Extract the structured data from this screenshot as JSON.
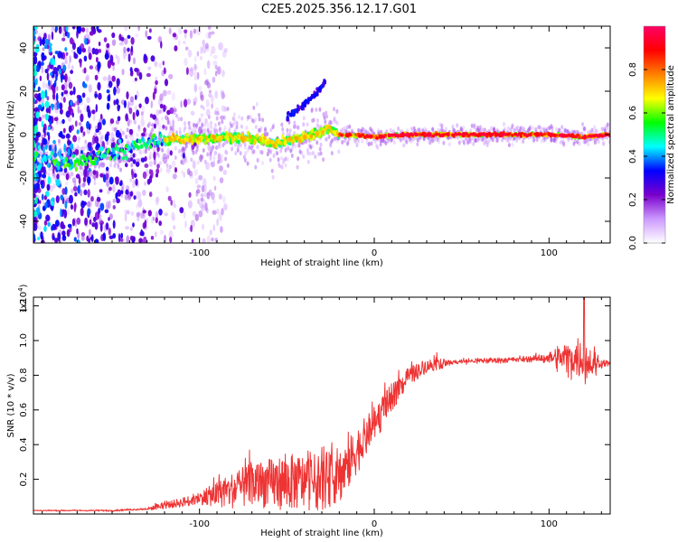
{
  "title": "C2E5.2025.356.12.17.G01",
  "chart_data": [
    {
      "type": "heatmap",
      "name": "spectrogram",
      "xlabel": "Height of straight line (km)",
      "ylabel": "Frequency (Hz)",
      "xlim": [
        -195,
        135
      ],
      "ylim": [
        -50,
        50
      ],
      "xticks": [
        -100,
        0,
        100
      ],
      "yticks": [
        -40,
        -20,
        0,
        20,
        40
      ],
      "colorbar": {
        "label": "Normalized spectral amplitude",
        "range": [
          0,
          1
        ],
        "ticks": [
          "0.0",
          "0.2",
          "0.4",
          "0.6",
          "0.8"
        ],
        "colors": [
          "#ffffff",
          "#cc99ff",
          "#7a00cc",
          "#0000ff",
          "#00ffff",
          "#00ff00",
          "#ffff00",
          "#ff8000",
          "#ff0000",
          "#ff0066"
        ]
      },
      "ridge": [
        {
          "x": -190,
          "f": -12
        },
        {
          "x": -170,
          "f": -13
        },
        {
          "x": -150,
          "f": -8
        },
        {
          "x": -130,
          "f": -4
        },
        {
          "x": -115,
          "f": -2
        },
        {
          "x": -100,
          "f": -2
        },
        {
          "x": -85,
          "f": -1
        },
        {
          "x": -70,
          "f": -2
        },
        {
          "x": -55,
          "f": -4
        },
        {
          "x": -45,
          "f": -2
        },
        {
          "x": -35,
          "f": 0
        },
        {
          "x": -25,
          "f": 3
        },
        {
          "x": -20,
          "f": 0
        },
        {
          "x": 0,
          "f": -1
        },
        {
          "x": 20,
          "f": 0
        },
        {
          "x": 60,
          "f": 0
        },
        {
          "x": 100,
          "f": 0
        },
        {
          "x": 120,
          "f": -1
        },
        {
          "x": 135,
          "f": 0
        }
      ],
      "branch": [
        {
          "x": -50,
          "f": 8
        },
        {
          "x": -40,
          "f": 14
        },
        {
          "x": -32,
          "f": 20
        },
        {
          "x": -28,
          "f": 25
        }
      ]
    },
    {
      "type": "line",
      "name": "snr",
      "xlabel": "Height of straight line (km)",
      "ylabel": "SNR (10 * v/v)",
      "scale_label": "(x10^4)",
      "scale_base": "(x10",
      "scale_exp": "4",
      "scale_close": ")",
      "xlim": [
        -195,
        135
      ],
      "ylim": [
        0,
        1.25
      ],
      "xticks": [
        -100,
        0,
        100
      ],
      "yticks": [
        0.2,
        0.4,
        0.6,
        0.8,
        1.0,
        1.2
      ],
      "ytick_labels": [
        "0.2",
        "0.4",
        "0.6",
        "0.8",
        "1.0",
        "1.2"
      ],
      "color": "#ee3333",
      "trend": [
        {
          "x": -195,
          "y": 0.02
        },
        {
          "x": -150,
          "y": 0.02
        },
        {
          "x": -130,
          "y": 0.03
        },
        {
          "x": -110,
          "y": 0.07
        },
        {
          "x": -90,
          "y": 0.12
        },
        {
          "x": -70,
          "y": 0.18
        },
        {
          "x": -50,
          "y": 0.2
        },
        {
          "x": -30,
          "y": 0.2
        },
        {
          "x": -18,
          "y": 0.25
        },
        {
          "x": -10,
          "y": 0.38
        },
        {
          "x": 0,
          "y": 0.52
        },
        {
          "x": 10,
          "y": 0.68
        },
        {
          "x": 20,
          "y": 0.8
        },
        {
          "x": 30,
          "y": 0.86
        },
        {
          "x": 50,
          "y": 0.88
        },
        {
          "x": 80,
          "y": 0.89
        },
        {
          "x": 100,
          "y": 0.9
        },
        {
          "x": 115,
          "y": 0.9
        },
        {
          "x": 125,
          "y": 0.87
        },
        {
          "x": 135,
          "y": 0.87
        }
      ],
      "noise": [
        {
          "x": -195,
          "a": 0.005
        },
        {
          "x": -130,
          "a": 0.01
        },
        {
          "x": -100,
          "a": 0.04
        },
        {
          "x": -80,
          "a": 0.12
        },
        {
          "x": -50,
          "a": 0.18
        },
        {
          "x": -20,
          "a": 0.18
        },
        {
          "x": 0,
          "a": 0.12
        },
        {
          "x": 20,
          "a": 0.06
        },
        {
          "x": 40,
          "a": 0.03
        },
        {
          "x": 90,
          "a": 0.03
        },
        {
          "x": 100,
          "a": 0.06
        },
        {
          "x": 110,
          "a": 0.18
        },
        {
          "x": 125,
          "a": 0.2
        },
        {
          "x": 130,
          "a": 0.04
        },
        {
          "x": 135,
          "a": 0.02
        }
      ],
      "peak": {
        "x": 120,
        "y": 1.25
      }
    }
  ]
}
